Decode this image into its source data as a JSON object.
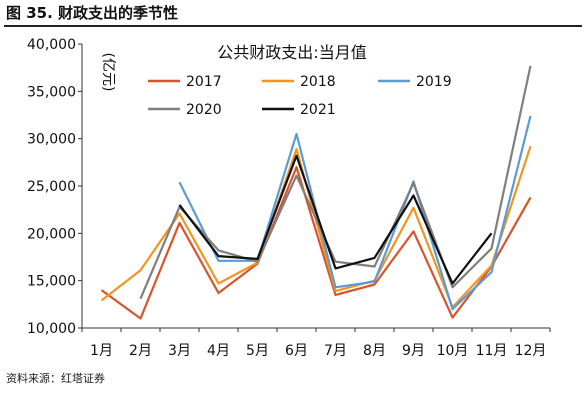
{
  "figure_title": "图 35. 财政支出的季节性",
  "source": "资料来源：红塔证券",
  "chart_data": {
    "type": "line",
    "title": "公共财政支出:当月值",
    "ylabel": "(亿元)",
    "xlabel": "",
    "ylim": [
      10000,
      40000
    ],
    "yticks": [
      10000,
      15000,
      20000,
      25000,
      30000,
      35000,
      40000
    ],
    "ytick_labels": [
      "10,000",
      "15,000",
      "20,000",
      "25,000",
      "30,000",
      "35,000",
      "40,000"
    ],
    "categories": [
      "1月",
      "2月",
      "3月",
      "4月",
      "5月",
      "6月",
      "7月",
      "8月",
      "9月",
      "10月",
      "11月",
      "12月"
    ],
    "legend_position": "top",
    "grid": false,
    "series": [
      {
        "name": "2017",
        "color": "#d9532b",
        "values": [
          14000,
          11000,
          21100,
          13700,
          16800,
          27000,
          13500,
          14600,
          20200,
          11100,
          16500,
          23800
        ]
      },
      {
        "name": "2018",
        "color": "#f0961f",
        "values": [
          12900,
          16100,
          22100,
          14700,
          16900,
          28900,
          13900,
          15000,
          22700,
          12200,
          16600,
          29200
        ]
      },
      {
        "name": "2019",
        "color": "#5b9bd5",
        "values": [
          null,
          null,
          25400,
          17100,
          17100,
          30500,
          14300,
          14900,
          25500,
          12000,
          15900,
          32400
        ]
      },
      {
        "name": "2020",
        "color": "#7f7f7f",
        "values": [
          null,
          13100,
          22800,
          18200,
          17000,
          26100,
          17000,
          16500,
          25300,
          14300,
          18400,
          37700
        ]
      },
      {
        "name": "2021",
        "color": "#111111",
        "values": [
          null,
          null,
          23000,
          17600,
          17300,
          28200,
          16300,
          17400,
          24000,
          14700,
          20000,
          null
        ]
      }
    ]
  }
}
